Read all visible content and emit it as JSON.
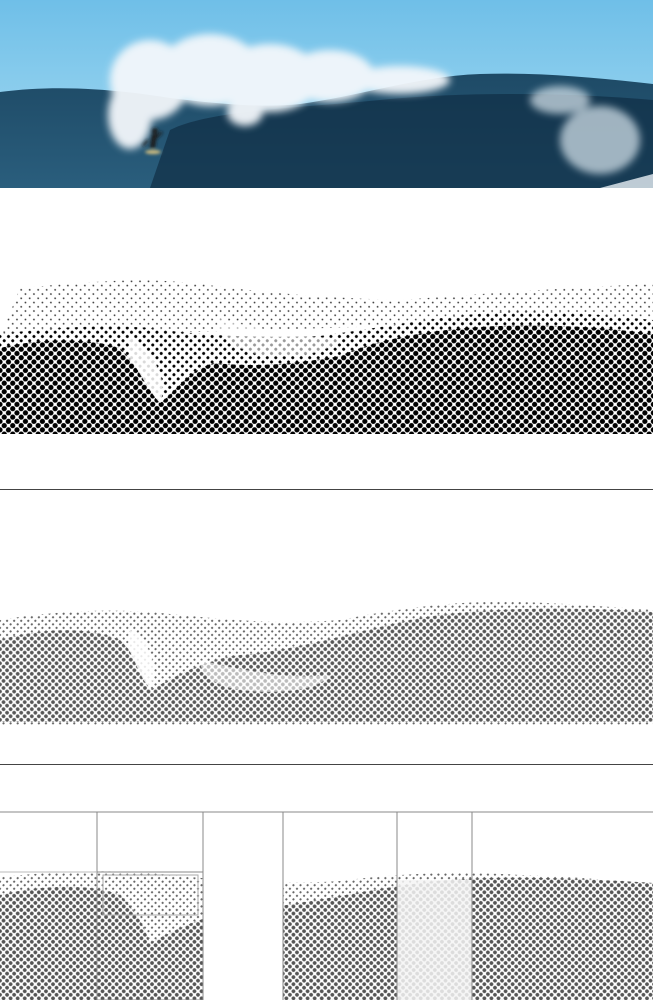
{
  "image": {
    "subject": "surfer-riding-large-wave",
    "panels": [
      {
        "kind": "color-photograph",
        "palette": {
          "sky": "#8fd0f0",
          "sky_top": "#6fbfe8",
          "ocean": "#1f4f6e",
          "ocean_deep": "#12334a",
          "foam": "#f4f7fa"
        }
      },
      {
        "kind": "halftone-black",
        "ink": "#000000"
      },
      {
        "kind": "halftone-gray",
        "ink": "#6a6a6a"
      },
      {
        "kind": "halftone-gray-gridded",
        "ink": "#6a6a6a",
        "grid_color": "#888888",
        "overlay_color": "#f2f2f2"
      }
    ]
  }
}
